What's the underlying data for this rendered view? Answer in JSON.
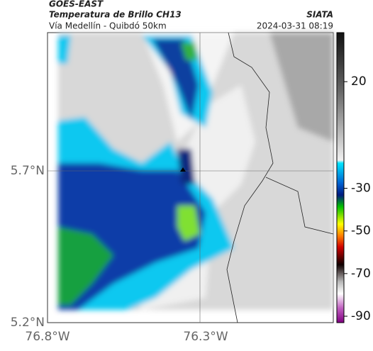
{
  "header": {
    "source": "GOES-EAST",
    "title": "Temperatura de Brillo CH13",
    "subtitle": "Vía Medellín - Quibdó 50km",
    "organization": "SIATA",
    "datetime": "2024-03-31 08:19"
  },
  "map": {
    "lat_labels": [
      "5.7°N",
      "5.2°N"
    ],
    "lon_labels": [
      "76.8°W",
      "76.3°W"
    ]
  },
  "colorbar": {
    "lim": [
      -93,
      43
    ],
    "ticks": [
      20,
      -30,
      -50,
      -70,
      -90
    ]
  }
}
